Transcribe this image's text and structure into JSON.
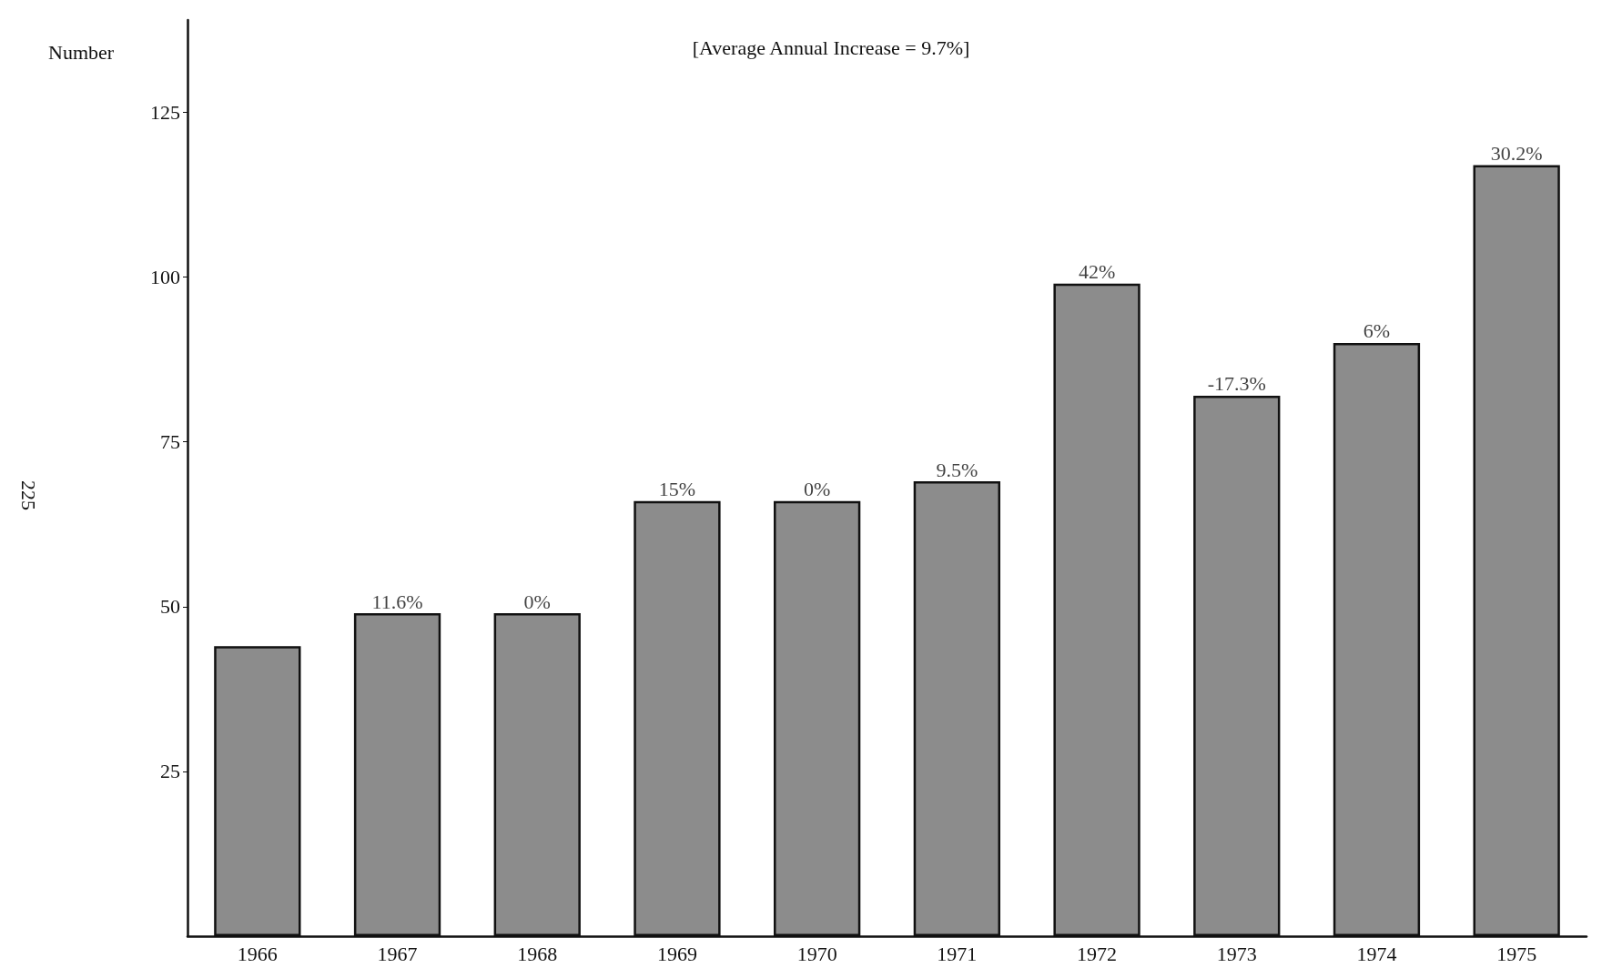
{
  "chart_data": {
    "type": "bar",
    "title": "[Average Annual Increase = 9.7%]",
    "ylabel": "Number",
    "categories": [
      "1966",
      "1967",
      "1968",
      "1969",
      "1970",
      "1971",
      "1972",
      "1973",
      "1974",
      "1975"
    ],
    "values": [
      44,
      49,
      49,
      66,
      66,
      69,
      99,
      82,
      90,
      117
    ],
    "color": "#8c8c8c",
    "ylim": [
      0,
      139
    ],
    "yticks": [
      25,
      50,
      75,
      100,
      125
    ],
    "grid": false,
    "annotations": [
      "225",
      {
        "text": "11.6%",
        "x": "1967",
        "y": 49
      },
      {
        "text": "0%",
        "x": "1968",
        "y": 49
      },
      {
        "text": "15%",
        "x": "1969",
        "y": 66
      },
      {
        "text": "0%",
        "x": "1970",
        "y": 66
      },
      {
        "text": "9.5%",
        "x": "1971",
        "y": 69
      },
      {
        "text": "42%",
        "x": "1972",
        "y": 99
      },
      {
        "text": "-17.3%",
        "x": "1973",
        "y": 82
      },
      {
        "text": "6%",
        "x": "1974",
        "y": 90
      },
      {
        "text": "30.2%",
        "x": "1975",
        "y": 117
      }
    ]
  }
}
